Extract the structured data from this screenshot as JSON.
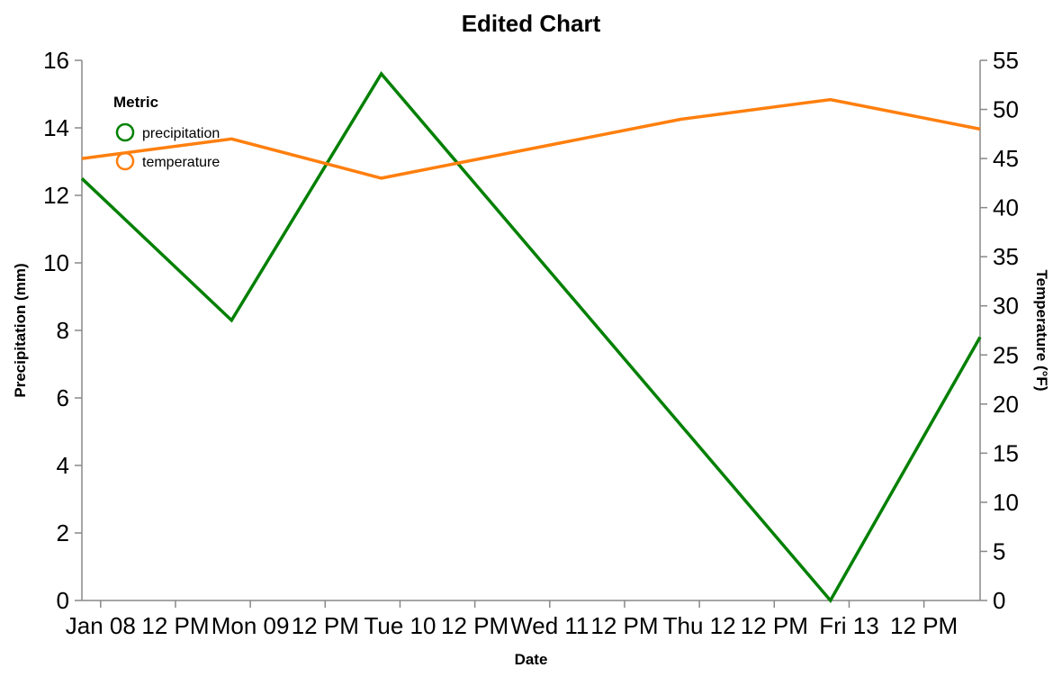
{
  "chart_data": {
    "type": "line",
    "title": "Edited Chart",
    "xlabel": "Date",
    "ylabel_left": "Precipitation (mm)",
    "ylabel_right": "Temperature (°F)",
    "x": [
      "2024-01-07T21:00",
      "2024-01-08T16:00",
      "2024-01-09T14:00",
      "2024-01-11T08:00",
      "2024-01-12T08:00",
      "2024-01-13T06:00"
    ],
    "x_ticks": [
      {
        "t": "2024-01-08T00:00",
        "label": "Jan 08"
      },
      {
        "t": "2024-01-08T12:00",
        "label": "12 PM"
      },
      {
        "t": "2024-01-09T00:00",
        "label": "Mon 09"
      },
      {
        "t": "2024-01-09T12:00",
        "label": "12 PM"
      },
      {
        "t": "2024-01-10T00:00",
        "label": "Tue 10"
      },
      {
        "t": "2024-01-10T12:00",
        "label": "12 PM"
      },
      {
        "t": "2024-01-11T00:00",
        "label": "Wed 11"
      },
      {
        "t": "2024-01-11T12:00",
        "label": "12 PM"
      },
      {
        "t": "2024-01-12T00:00",
        "label": "Thu 12"
      },
      {
        "t": "2024-01-12T12:00",
        "label": "12 PM"
      },
      {
        "t": "2024-01-13T00:00",
        "label": "Fri 13"
      },
      {
        "t": "2024-01-13T12:00",
        "label": "12 PM"
      }
    ],
    "x_range": [
      "2024-01-07T21:00",
      "2024-01-13T21:00"
    ],
    "left_axis": {
      "min": 0,
      "max": 16,
      "ticks": [
        0,
        2,
        4,
        6,
        8,
        10,
        12,
        14,
        16
      ]
    },
    "right_axis": {
      "min": 0,
      "max": 55,
      "ticks": [
        0,
        5,
        10,
        15,
        20,
        25,
        30,
        35,
        40,
        45,
        50,
        55
      ]
    },
    "series": [
      {
        "name": "precipitation",
        "axis": "left",
        "color": "#008000",
        "points": [
          {
            "x": "2024-01-07T21:00",
            "y": 12.5
          },
          {
            "x": "2024-01-08T21:00",
            "y": 8.3
          },
          {
            "x": "2024-01-09T21:00",
            "y": 15.6
          },
          {
            "x": "2024-01-12T21:00",
            "y": 0.0
          },
          {
            "x": "2024-01-13T21:00",
            "y": 7.8
          }
        ]
      },
      {
        "name": "temperature",
        "axis": "right",
        "color": "#ff7f0e",
        "points": [
          {
            "x": "2024-01-07T21:00",
            "y": 45
          },
          {
            "x": "2024-01-08T21:00",
            "y": 47
          },
          {
            "x": "2024-01-09T21:00",
            "y": 43
          },
          {
            "x": "2024-01-11T21:00",
            "y": 49
          },
          {
            "x": "2024-01-12T21:00",
            "y": 51
          },
          {
            "x": "2024-01-13T21:00",
            "y": 48
          }
        ]
      }
    ],
    "legend": {
      "title": "Metric",
      "position": "top-left"
    },
    "grid": false
  }
}
